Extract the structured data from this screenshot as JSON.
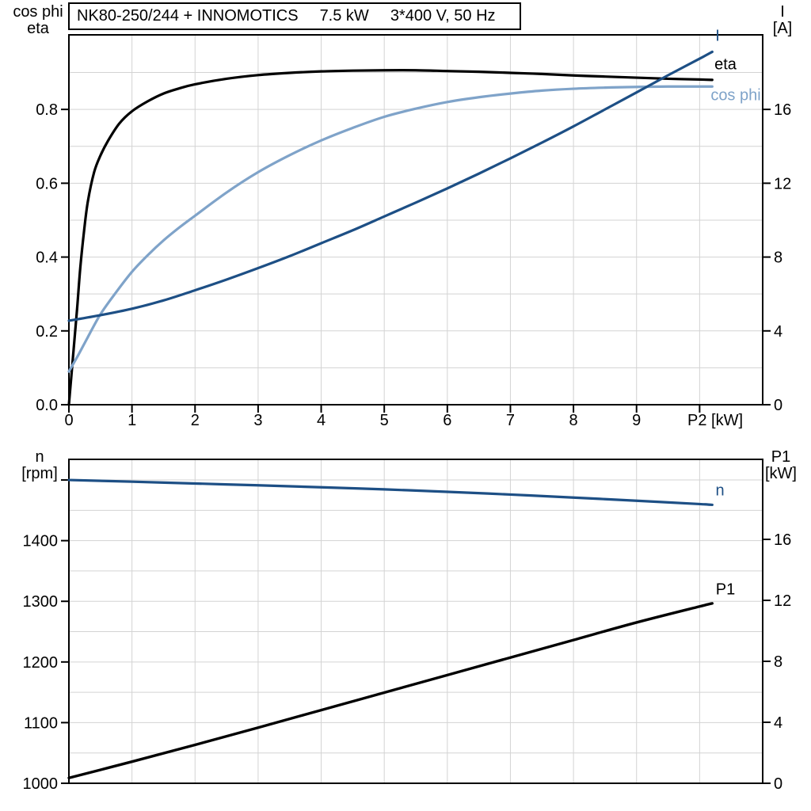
{
  "title": {
    "model": "NK80-250/244 + INNOMOTICS",
    "power": "7.5 kW",
    "voltage": "3*400 V, 50 Hz"
  },
  "colors": {
    "dark_blue": "#1d4f85",
    "light_blue": "#7fa3c9",
    "black": "#000000",
    "gridline": "#d3d3d3",
    "axis": "#000000"
  },
  "chart_data": [
    {
      "type": "line",
      "name": "motor-electrical-curves",
      "x_axis": {
        "label": "P2 [kW]",
        "range": [
          0,
          11.0
        ],
        "grid_step": 1,
        "tick_values": [
          0,
          1,
          2,
          3,
          4,
          5,
          6,
          7,
          8,
          9,
          10
        ],
        "tick_labels": [
          "0",
          "1",
          "2",
          "3",
          "4",
          "5",
          "6",
          "7",
          "8",
          "9",
          ""
        ]
      },
      "y_left": {
        "header": [
          "cos phi",
          "eta"
        ],
        "range": [
          0,
          1.002
        ],
        "grid_start": 0.1,
        "grid_step": 0.1,
        "tick_values": [
          0,
          0.2,
          0.4,
          0.6,
          0.8
        ],
        "tick_labels": [
          "0.0",
          "0.2",
          "0.4",
          "0.6",
          "0.8"
        ]
      },
      "y_right": {
        "header": [
          "I",
          "[A]"
        ],
        "range": [
          0,
          20.04
        ],
        "tick_values": [
          0,
          4,
          8,
          12,
          16
        ],
        "tick_labels": [
          "0",
          "4",
          "8",
          "12",
          "16"
        ]
      },
      "series": [
        {
          "name": "eta",
          "axis": "left",
          "color": "#000000",
          "width": 3.2,
          "points": [
            [
              0,
              0
            ],
            [
              0.04,
              0.08
            ],
            [
              0.08,
              0.16
            ],
            [
              0.13,
              0.26
            ],
            [
              0.18,
              0.37
            ],
            [
              0.24,
              0.47
            ],
            [
              0.3,
              0.55
            ],
            [
              0.4,
              0.63
            ],
            [
              0.5,
              0.675
            ],
            [
              0.62,
              0.715
            ],
            [
              0.8,
              0.762
            ],
            [
              1.0,
              0.795
            ],
            [
              1.25,
              0.822
            ],
            [
              1.5,
              0.843
            ],
            [
              1.75,
              0.857
            ],
            [
              2,
              0.868
            ],
            [
              2.5,
              0.883
            ],
            [
              3,
              0.893
            ],
            [
              3.5,
              0.899
            ],
            [
              4,
              0.903
            ],
            [
              4.5,
              0.905
            ],
            [
              5,
              0.906
            ],
            [
              5.5,
              0.906
            ],
            [
              6,
              0.904
            ],
            [
              6.5,
              0.902
            ],
            [
              7,
              0.899
            ],
            [
              7.5,
              0.896
            ],
            [
              8,
              0.892
            ],
            [
              8.5,
              0.889
            ],
            [
              9,
              0.886
            ],
            [
              9.5,
              0.883
            ],
            [
              10,
              0.881
            ],
            [
              10.2,
              0.88
            ]
          ]
        },
        {
          "name": "cos phi",
          "axis": "left",
          "color": "#7fa3c9",
          "width": 3.2,
          "points": [
            [
              0,
              0.09
            ],
            [
              0.15,
              0.135
            ],
            [
              0.3,
              0.183
            ],
            [
              0.5,
              0.245
            ],
            [
              0.75,
              0.305
            ],
            [
              1,
              0.36
            ],
            [
              1.25,
              0.405
            ],
            [
              1.5,
              0.445
            ],
            [
              1.75,
              0.48
            ],
            [
              2,
              0.512
            ],
            [
              2.5,
              0.575
            ],
            [
              3,
              0.63
            ],
            [
              3.5,
              0.676
            ],
            [
              4,
              0.716
            ],
            [
              4.5,
              0.75
            ],
            [
              5,
              0.78
            ],
            [
              5.5,
              0.802
            ],
            [
              6,
              0.82
            ],
            [
              6.5,
              0.833
            ],
            [
              7,
              0.843
            ],
            [
              7.5,
              0.851
            ],
            [
              8,
              0.856
            ],
            [
              8.5,
              0.859
            ],
            [
              9,
              0.861
            ],
            [
              9.5,
              0.862
            ],
            [
              10,
              0.862
            ],
            [
              10.2,
              0.862
            ]
          ]
        },
        {
          "name": "I",
          "axis": "right",
          "color": "#1d4f85",
          "width": 3.2,
          "points": [
            [
              0,
              4.55
            ],
            [
              0.5,
              4.85
            ],
            [
              1,
              5.2
            ],
            [
              1.5,
              5.65
            ],
            [
              2,
              6.2
            ],
            [
              2.5,
              6.78
            ],
            [
              3,
              7.4
            ],
            [
              3.5,
              8.05
            ],
            [
              4,
              8.75
            ],
            [
              4.5,
              9.45
            ],
            [
              5,
              10.2
            ],
            [
              5.5,
              10.95
            ],
            [
              6,
              11.72
            ],
            [
              6.5,
              12.52
            ],
            [
              7,
              13.35
            ],
            [
              7.5,
              14.2
            ],
            [
              8,
              15.08
            ],
            [
              8.5,
              16.0
            ],
            [
              9,
              16.92
            ],
            [
              9.5,
              17.85
            ],
            [
              10,
              18.75
            ],
            [
              10.2,
              19.12
            ]
          ]
        }
      ]
    },
    {
      "type": "line",
      "name": "motor-speed-power-curves",
      "x_axis": {
        "label": "",
        "range": [
          0,
          11.0
        ],
        "grid_step": 1,
        "tick_values": [],
        "tick_labels": []
      },
      "y_left": {
        "header": [
          "n",
          "[rpm]"
        ],
        "range": [
          1000,
          1534
        ],
        "grid_start": 1050,
        "grid_step": 50,
        "tick_values": [
          1000,
          1100,
          1200,
          1300,
          1400,
          1500
        ],
        "tick_labels": [
          "1000",
          "1100",
          "1200",
          "1300",
          "1400",
          ""
        ]
      },
      "y_right": {
        "header": [
          "P1",
          "[kW]"
        ],
        "range": [
          0,
          21.25
        ],
        "tick_values": [
          0,
          4,
          8,
          12,
          16
        ],
        "tick_labels": [
          "0",
          "4",
          "8",
          "12",
          "16"
        ]
      },
      "series": [
        {
          "name": "n",
          "axis": "left",
          "color": "#1d4f85",
          "width": 3.2,
          "points": [
            [
              0,
              1500
            ],
            [
              1,
              1497.2
            ],
            [
              2,
              1494.2
            ],
            [
              3,
              1491.2
            ],
            [
              4,
              1488
            ],
            [
              5,
              1484.5
            ],
            [
              6,
              1480.5
            ],
            [
              7,
              1476
            ],
            [
              8,
              1471
            ],
            [
              9,
              1465.8
            ],
            [
              10,
              1460.3
            ],
            [
              10.2,
              1459
            ]
          ]
        },
        {
          "name": "P1",
          "axis": "right",
          "color": "#000000",
          "width": 3.4,
          "points": [
            [
              0,
              0.35
            ],
            [
              1,
              1.42
            ],
            [
              2,
              2.52
            ],
            [
              3,
              3.65
            ],
            [
              4,
              4.8
            ],
            [
              5,
              5.95
            ],
            [
              6,
              7.1
            ],
            [
              7,
              8.25
            ],
            [
              8,
              9.4
            ],
            [
              9,
              10.55
            ],
            [
              10,
              11.6
            ],
            [
              10.2,
              11.8
            ]
          ]
        }
      ]
    }
  ]
}
